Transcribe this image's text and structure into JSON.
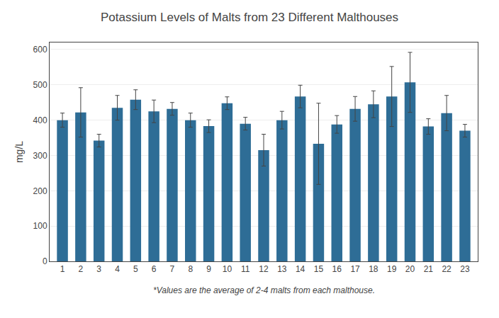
{
  "chart_data": {
    "type": "bar",
    "title": "Potassium Levels of Malts from 23 Different Malthouses",
    "ylabel": "mg/L",
    "annotations": [
      "*Values are the average of 2-4 malts from each malthouse."
    ],
    "categories": [
      1,
      2,
      3,
      4,
      5,
      6,
      7,
      8,
      9,
      10,
      11,
      12,
      13,
      14,
      15,
      16,
      17,
      18,
      19,
      20,
      21,
      22,
      23
    ],
    "values": [
      400,
      422,
      342,
      435,
      458,
      425,
      432,
      400,
      383,
      448,
      390,
      315,
      400,
      467,
      333,
      388,
      432,
      445,
      467,
      507,
      382,
      420,
      370
    ],
    "errors": [
      20,
      70,
      18,
      35,
      28,
      32,
      18,
      20,
      18,
      18,
      18,
      45,
      25,
      32,
      115,
      25,
      35,
      38,
      85,
      85,
      22,
      50,
      18
    ],
    "color": "#2e6d96",
    "ylim": [
      0,
      620
    ],
    "yticks": [
      0,
      100,
      200,
      300,
      400,
      500,
      600
    ],
    "grid": true
  }
}
